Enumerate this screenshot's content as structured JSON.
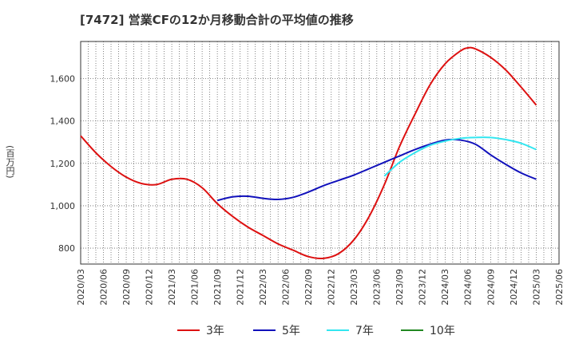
{
  "title": "[7472]  営業CFの12か月移動合計の平均値の推移",
  "y_unit_label": "(百万円)",
  "chart_data": {
    "type": "line",
    "ylim": [
      725,
      1775
    ],
    "yticks": [
      800,
      1000,
      1200,
      1400,
      1600
    ],
    "ytick_labels": [
      "800",
      "1,000",
      "1,200",
      "1,400",
      "1,600"
    ],
    "xticks": [
      "2020/03",
      "2020/06",
      "2020/09",
      "2020/12",
      "2021/03",
      "2021/06",
      "2021/09",
      "2021/12",
      "2022/03",
      "2022/06",
      "2022/09",
      "2022/12",
      "2023/03",
      "2023/06",
      "2023/09",
      "2023/12",
      "2024/03",
      "2024/06",
      "2024/09",
      "2024/12",
      "2025/03",
      "2025/06"
    ],
    "grid": true,
    "legend_placement": "bottom",
    "series": [
      {
        "name": "3年",
        "color": "#dd1111",
        "x": [
          "2020/03",
          "2020/05",
          "2020/07",
          "2020/09",
          "2020/11",
          "2021/01",
          "2021/03",
          "2021/05",
          "2021/07",
          "2021/09",
          "2021/11",
          "2022/01",
          "2022/03",
          "2022/05",
          "2022/07",
          "2022/09",
          "2022/11",
          "2023/01",
          "2023/03",
          "2023/05",
          "2023/07",
          "2023/09",
          "2023/11",
          "2024/01",
          "2024/03",
          "2024/05",
          "2024/06",
          "2024/07",
          "2024/09",
          "2024/11",
          "2025/01",
          "2025/03"
        ],
        "values": [
          1330,
          1250,
          1185,
          1135,
          1105,
          1100,
          1125,
          1125,
          1085,
          1010,
          950,
          900,
          860,
          820,
          790,
          760,
          752,
          775,
          840,
          950,
          1100,
          1280,
          1430,
          1570,
          1670,
          1730,
          1745,
          1740,
          1700,
          1640,
          1560,
          1475
        ]
      },
      {
        "name": "5年",
        "color": "#1111bb",
        "x": [
          "2021/09",
          "2021/11",
          "2022/01",
          "2022/03",
          "2022/05",
          "2022/07",
          "2022/09",
          "2022/11",
          "2023/01",
          "2023/03",
          "2023/05",
          "2023/07",
          "2023/09",
          "2023/11",
          "2024/01",
          "2024/03",
          "2024/05",
          "2024/07",
          "2024/09",
          "2024/11",
          "2025/01",
          "2025/03"
        ],
        "values": [
          1025,
          1042,
          1045,
          1035,
          1030,
          1040,
          1065,
          1095,
          1120,
          1145,
          1175,
          1205,
          1235,
          1265,
          1290,
          1310,
          1310,
          1290,
          1240,
          1195,
          1155,
          1125
        ]
      },
      {
        "name": "7年",
        "color": "#33e6f0",
        "x": [
          "2023/07",
          "2023/09",
          "2023/11",
          "2024/01",
          "2024/03",
          "2024/05",
          "2024/07",
          "2024/09",
          "2024/11",
          "2025/01",
          "2025/03"
        ],
        "values": [
          1140,
          1205,
          1250,
          1285,
          1305,
          1318,
          1322,
          1322,
          1312,
          1295,
          1265
        ]
      },
      {
        "name": "10年",
        "color": "#228822",
        "x": [],
        "values": []
      }
    ]
  }
}
